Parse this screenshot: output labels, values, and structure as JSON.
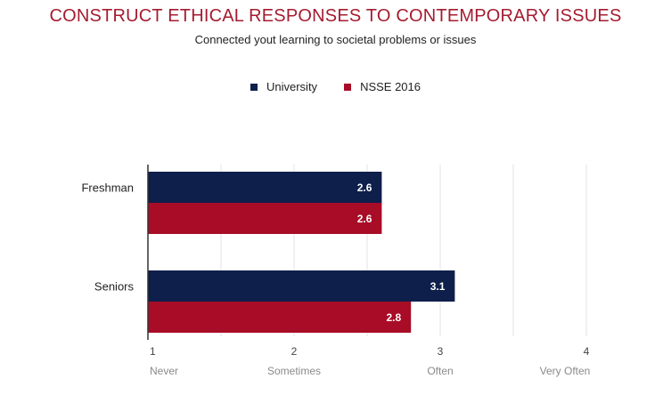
{
  "header": {
    "title": "CONSTRUCT ETHICAL RESPONSES TO CONTEMPORARY ISSUES",
    "subtitle": "Connected yout learning to societal problems or issues"
  },
  "colors": {
    "title": "#a51c30",
    "university": "#0f1f4b",
    "nsse": "#a80c26",
    "grid": "#e3e3e3",
    "axis": "#333333",
    "tick_text": "#444444",
    "scale_text": "#8a8a8a"
  },
  "chart_data": {
    "type": "bar",
    "orientation": "horizontal",
    "title": "CONSTRUCT ETHICAL RESPONSES TO CONTEMPORARY ISSUES",
    "subtitle": "Connected yout learning to societal problems or issues",
    "categories": [
      "Freshman",
      "Seniors"
    ],
    "series": [
      {
        "name": "University",
        "values": [
          2.6,
          3.1
        ],
        "color": "#0f1f4b"
      },
      {
        "name": "NSSE 2016",
        "values": [
          2.6,
          2.8
        ],
        "color": "#a80c26"
      }
    ],
    "xlim": [
      1,
      4
    ],
    "xticks": [
      "1",
      "2",
      "3",
      "4"
    ],
    "scale_labels": [
      "Never",
      "Sometimes",
      "Often",
      "Very Often"
    ],
    "legend": "top-center",
    "grid": true
  }
}
